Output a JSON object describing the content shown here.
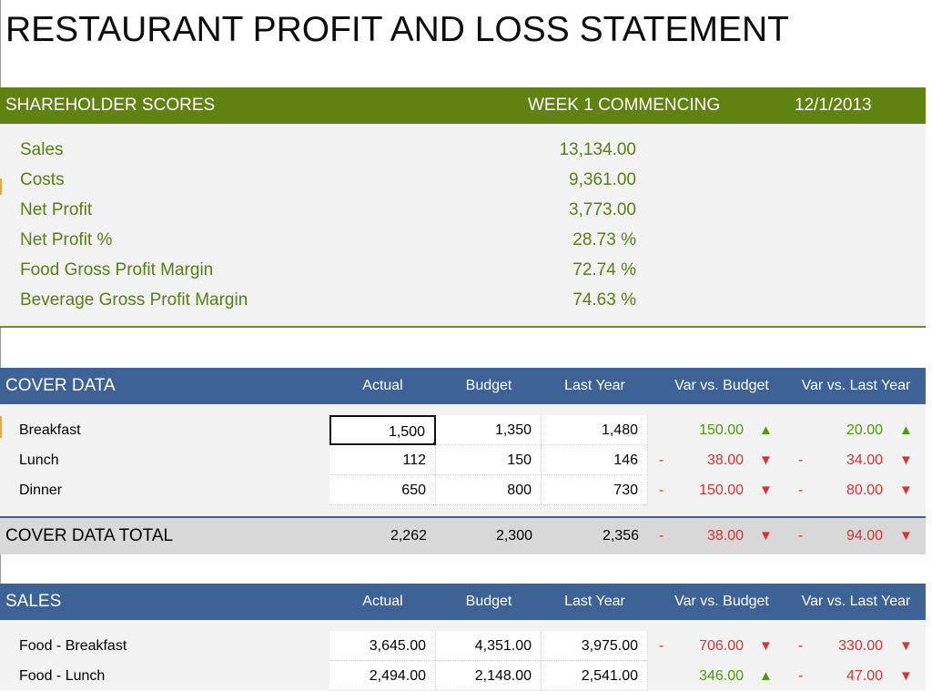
{
  "title": "RESTAURANT PROFIT AND LOSS STATEMENT",
  "shareholder": {
    "section_title": "SHAREHOLDER SCORES",
    "week_label": "WEEK 1 COMMENCING",
    "date": "12/1/2013",
    "rows": [
      {
        "label": "Sales",
        "value": "13,134.00"
      },
      {
        "label": "Costs",
        "value": "9,361.00"
      },
      {
        "label": "Net Profit",
        "value": "3,773.00"
      },
      {
        "label": "Net Profit %",
        "value": "28.73 %"
      },
      {
        "label": "Food Gross Profit Margin",
        "value": "72.74 %"
      },
      {
        "label": "Beverage Gross Profit Margin",
        "value": "74.63 %"
      }
    ]
  },
  "columns": [
    "Actual",
    "Budget",
    "Last Year",
    "Var vs. Budget",
    "Var vs. Last Year"
  ],
  "cover": {
    "section_title": "COVER DATA",
    "rows": [
      {
        "label": "Breakfast",
        "actual": "1,500",
        "budget": "1,350",
        "last_year": "1,480",
        "var_budget": "150.00",
        "var_budget_dir": "up",
        "var_ly": "20.00",
        "var_ly_dir": "up"
      },
      {
        "label": "Lunch",
        "actual": "112",
        "budget": "150",
        "last_year": "146",
        "var_budget": "38.00",
        "var_budget_dir": "down",
        "var_ly": "34.00",
        "var_ly_dir": "down"
      },
      {
        "label": "Dinner",
        "actual": "650",
        "budget": "800",
        "last_year": "730",
        "var_budget": "150.00",
        "var_budget_dir": "down",
        "var_ly": "80.00",
        "var_ly_dir": "down"
      }
    ],
    "total": {
      "label": "COVER DATA TOTAL",
      "actual": "2,262",
      "budget": "2,300",
      "last_year": "2,356",
      "var_budget": "38.00",
      "var_budget_dir": "down",
      "var_ly": "94.00",
      "var_ly_dir": "down"
    }
  },
  "sales": {
    "section_title": "SALES",
    "rows": [
      {
        "label": "Food - Breakfast",
        "actual": "3,645.00",
        "budget": "4,351.00",
        "last_year": "3,975.00",
        "var_budget": "706.00",
        "var_budget_dir": "down",
        "var_ly": "330.00",
        "var_ly_dir": "down"
      },
      {
        "label": "Food - Lunch",
        "actual": "2,494.00",
        "budget": "2,148.00",
        "last_year": "2,541.00",
        "var_budget": "346.00",
        "var_budget_dir": "up",
        "var_ly": "47.00",
        "var_ly_dir": "down"
      }
    ]
  },
  "symbols": {
    "dash": "-",
    "up": "▲",
    "down": "▼"
  },
  "colors": {
    "green_header": "#5f8211",
    "blue_header": "#3c6296",
    "positive": "#4e9a06",
    "negative": "#d63333",
    "label_green": "#5a7d14"
  }
}
